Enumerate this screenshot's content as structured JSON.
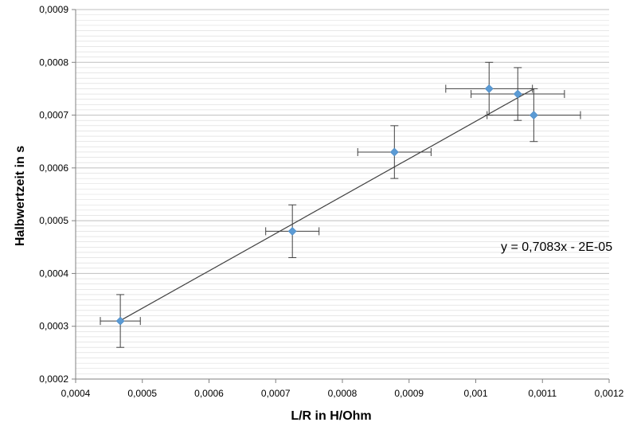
{
  "chart_data": {
    "type": "scatter",
    "title": "",
    "xlabel": "L/R in H/Ohm",
    "ylabel": "Halbwertzeit in s",
    "xlim": [
      0.0004,
      0.0012
    ],
    "ylim": [
      0.0002,
      0.0009
    ],
    "x_ticks": [
      "0,0004",
      "0,0005",
      "0,0006",
      "0,0007",
      "0,0008",
      "0,0009",
      "0,001",
      "0,0011",
      "0,0012"
    ],
    "y_ticks": [
      "0,0002",
      "0,0003",
      "0,0004",
      "0,0005",
      "0,0006",
      "0,0007",
      "0,0008",
      "0,0009"
    ],
    "grid": "horizontal",
    "points": [
      {
        "x": 0.000467,
        "y": 0.00031,
        "x_err": 3e-05,
        "y_err": 5e-05
      },
      {
        "x": 0.000725,
        "y": 0.00048,
        "x_err": 4e-05,
        "y_err": 5e-05
      },
      {
        "x": 0.000878,
        "y": 0.00063,
        "x_err": 5.5e-05,
        "y_err": 5e-05
      },
      {
        "x": 0.00102,
        "y": 0.00075,
        "x_err": 6.5e-05,
        "y_err": 5e-05
      },
      {
        "x": 0.001063,
        "y": 0.00074,
        "x_err": 7e-05,
        "y_err": 5e-05
      },
      {
        "x": 0.001087,
        "y": 0.0007,
        "x_err": 7e-05,
        "y_err": 5e-05
      }
    ],
    "trendline": {
      "slope": 0.7083,
      "intercept": -2e-05,
      "x_range": [
        0.000467,
        0.001087
      ]
    },
    "equation_label": "y = 0,7083x - 2E-05",
    "colors": {
      "marker": "#5b9bd5",
      "errorbar": "#404040",
      "trendline": "#404040",
      "grid": "#d9d9d9",
      "axis": "#808080"
    }
  }
}
